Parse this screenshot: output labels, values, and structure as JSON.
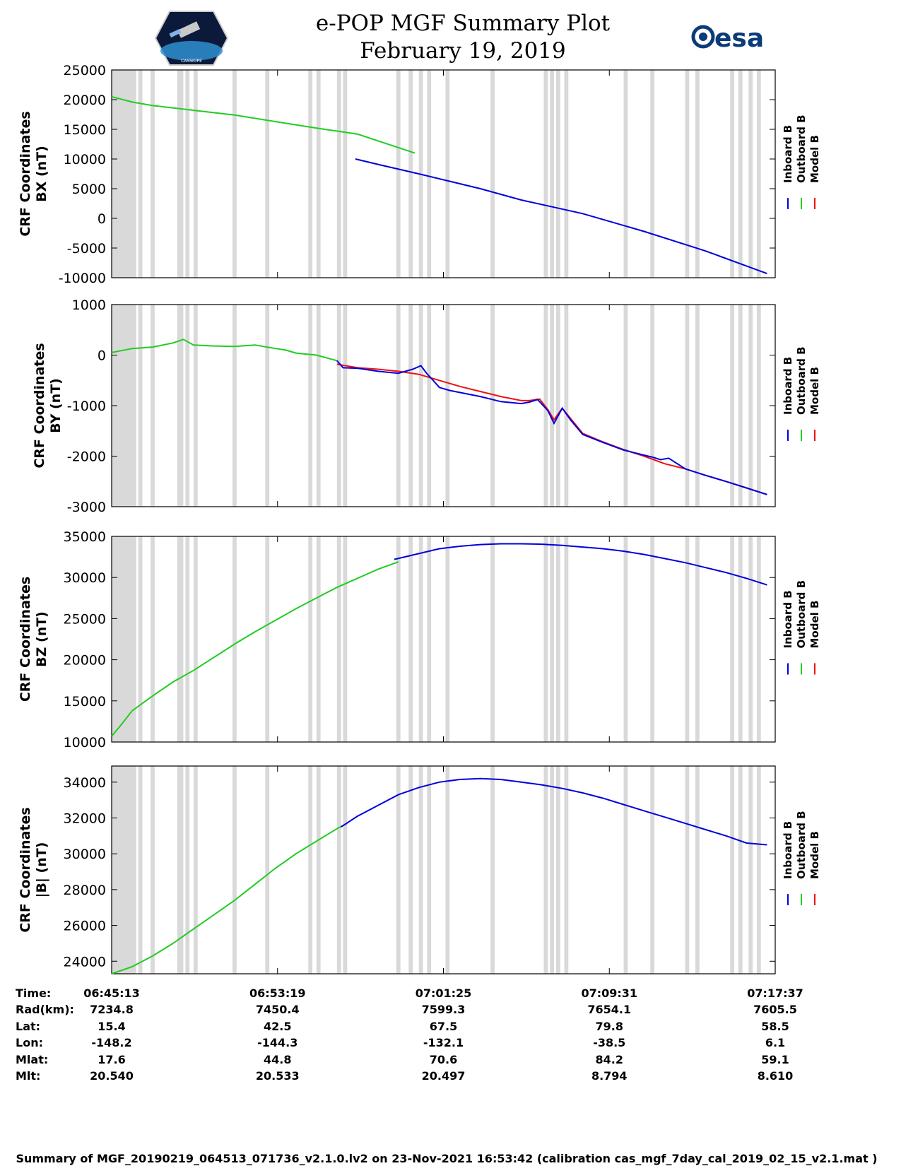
{
  "title": "e-POP MGF Summary Plot",
  "date": "February 19, 2019",
  "logo_left_text": "CASSIOPE",
  "logo_right_text": "esa",
  "colors": {
    "inboard": "#0000dd",
    "outboard": "#22cc22",
    "model": "#ee1111",
    "gap": "#d9d9d9"
  },
  "legend": [
    {
      "label": "Inboard B",
      "color": "#0000dd"
    },
    {
      "label": "Outboard B",
      "color": "#22cc22"
    },
    {
      "label": "Model B",
      "color": "#ee1111"
    }
  ],
  "chart_data": [
    {
      "type": "line",
      "ylabel": [
        "CRF Coordinates",
        "BX (nT)"
      ],
      "ylim": [
        -10000,
        25000
      ],
      "yticks": [
        25000,
        20000,
        15000,
        10000,
        5000,
        0,
        -5000,
        -10000
      ],
      "xlim": [
        0,
        32
      ],
      "series": [
        {
          "name": "Outboard B",
          "color": "#22cc22",
          "x": [
            0,
            1,
            2,
            4,
            6,
            8,
            10,
            12,
            14.8
          ],
          "y": [
            20500,
            19600,
            19000,
            18200,
            17400,
            16300,
            15200,
            14200,
            11000
          ]
        },
        {
          "name": "Inboard B",
          "color": "#0000dd",
          "x": [
            11.9,
            13,
            15,
            18,
            20,
            23,
            26,
            29,
            32
          ],
          "y": [
            10000,
            9100,
            7500,
            5000,
            3100,
            800,
            -2200,
            -5500,
            -9300
          ]
        }
      ]
    },
    {
      "type": "line",
      "ylabel": [
        "CRF Coordinates",
        "BY (nT)"
      ],
      "ylim": [
        -3000,
        1000
      ],
      "yticks": [
        1000,
        0,
        -1000,
        -2000,
        -3000
      ],
      "xlim": [
        0,
        32
      ],
      "series": [
        {
          "name": "Model B",
          "color": "#ee1111",
          "x": [
            11,
            12,
            13,
            14,
            15,
            16,
            17,
            18,
            19,
            20,
            20.4,
            20.9,
            21.3,
            21.6,
            22,
            22.4,
            23,
            24,
            25,
            26,
            27,
            28,
            29,
            30,
            31,
            32
          ],
          "y": [
            -180,
            -250,
            -280,
            -320,
            -380,
            -500,
            -620,
            -720,
            -820,
            -900,
            -900,
            -870,
            -1080,
            -1280,
            -1050,
            -1250,
            -1550,
            -1720,
            -1870,
            -2000,
            -2150,
            -2250,
            -2380,
            -2500,
            -2630,
            -2760
          ]
        },
        {
          "name": "Outboard B",
          "color": "#22cc22",
          "x": [
            0,
            1,
            2,
            3,
            3.5,
            4,
            5,
            6,
            7,
            8,
            8.5,
            9,
            10,
            11
          ],
          "y": [
            50,
            130,
            160,
            240,
            310,
            200,
            180,
            170,
            200,
            130,
            100,
            40,
            0,
            -110
          ]
        },
        {
          "name": "Inboard B",
          "color": "#0000dd",
          "x": [
            11,
            11.3,
            12,
            13,
            14,
            14.7,
            15.1,
            15.4,
            15.7,
            16,
            16.5,
            17,
            18,
            19,
            20,
            20.4,
            20.8,
            21.3,
            21.6,
            22,
            22.4,
            23,
            24,
            25,
            26,
            26.4,
            26.8,
            27.2,
            28,
            29,
            30,
            31,
            32
          ],
          "y": [
            -110,
            -250,
            -260,
            -320,
            -360,
            -280,
            -210,
            -370,
            -500,
            -640,
            -700,
            -740,
            -820,
            -920,
            -960,
            -930,
            -880,
            -1100,
            -1350,
            -1050,
            -1280,
            -1570,
            -1730,
            -1880,
            -1980,
            -2020,
            -2070,
            -2040,
            -2250,
            -2380,
            -2500,
            -2630,
            -2760
          ]
        }
      ]
    },
    {
      "type": "line",
      "ylabel": [
        "CRF Coordinates",
        "BZ (nT)"
      ],
      "ylim": [
        10000,
        35000
      ],
      "yticks": [
        35000,
        30000,
        25000,
        20000,
        15000,
        10000
      ],
      "xlim": [
        0,
        32
      ],
      "series": [
        {
          "name": "Outboard B",
          "color": "#22cc22",
          "x": [
            0,
            0.5,
            1,
            2,
            3,
            4,
            5,
            6,
            7,
            8,
            9,
            10,
            11,
            12,
            13,
            14
          ],
          "y": [
            10700,
            12200,
            13800,
            15600,
            17300,
            18700,
            20300,
            21900,
            23400,
            24800,
            26200,
            27500,
            28800,
            29900,
            31000,
            31900
          ]
        },
        {
          "name": "Inboard B",
          "color": "#0000dd",
          "x": [
            13.8,
            15,
            16,
            17,
            18,
            19,
            20,
            21,
            22,
            23,
            24,
            25,
            26,
            27,
            28,
            29,
            30,
            31,
            32
          ],
          "y": [
            32200,
            32900,
            33500,
            33800,
            34000,
            34100,
            34100,
            34050,
            33900,
            33700,
            33500,
            33200,
            32800,
            32300,
            31800,
            31200,
            30600,
            29900,
            29100
          ]
        }
      ]
    },
    {
      "type": "line",
      "ylabel": [
        "CRF Coordinates",
        "|B| (nT)"
      ],
      "ylim": [
        23300,
        34900
      ],
      "yticks": [
        34000,
        32000,
        30000,
        28000,
        26000,
        24000
      ],
      "xlim": [
        0,
        32
      ],
      "series": [
        {
          "name": "Outboard B",
          "color": "#22cc22",
          "x": [
            0,
            1,
            2,
            3,
            4,
            5,
            6,
            7,
            8,
            9,
            10,
            11,
            11.5
          ],
          "y": [
            23300,
            23700,
            24300,
            25000,
            25800,
            26600,
            27400,
            28300,
            29200,
            30000,
            30700,
            31400,
            31700
          ]
        },
        {
          "name": "Inboard B",
          "color": "#0000dd",
          "x": [
            11.2,
            12,
            13,
            14,
            15,
            16,
            17,
            18,
            19,
            20,
            21,
            22,
            23,
            24,
            25,
            26,
            27,
            28,
            29,
            30,
            31,
            32
          ],
          "y": [
            31500,
            32100,
            32700,
            33300,
            33700,
            34000,
            34150,
            34200,
            34150,
            34000,
            33850,
            33650,
            33400,
            33100,
            32750,
            32400,
            32050,
            31700,
            31350,
            31000,
            30600,
            30500
          ]
        }
      ]
    }
  ],
  "gaps_min": [
    [
      0,
      1.2
    ],
    [
      1.3,
      1.5
    ],
    [
      1.9,
      2.1
    ],
    [
      3.2,
      3.5
    ],
    [
      3.6,
      3.8
    ],
    [
      4.0,
      4.2
    ],
    [
      5.9,
      6.1
    ],
    [
      7.5,
      7.7
    ],
    [
      9.6,
      9.8
    ],
    [
      10.0,
      10.2
    ],
    [
      11.0,
      11.2
    ],
    [
      11.3,
      11.5
    ],
    [
      13.9,
      14.1
    ],
    [
      14.5,
      14.7
    ],
    [
      15.0,
      15.2
    ],
    [
      15.4,
      15.6
    ],
    [
      16.3,
      16.5
    ],
    [
      18.5,
      18.7
    ],
    [
      21.1,
      21.3
    ],
    [
      21.4,
      21.6
    ],
    [
      21.7,
      21.9
    ],
    [
      22.1,
      22.3
    ],
    [
      25.0,
      25.2
    ],
    [
      26.3,
      26.5
    ],
    [
      28.0,
      28.2
    ],
    [
      28.5,
      28.7
    ],
    [
      30.2,
      30.4
    ],
    [
      30.6,
      30.8
    ],
    [
      31.1,
      31.3
    ],
    [
      31.5,
      31.7
    ]
  ],
  "xticks_min": [
    0,
    8.1,
    16.2,
    24.3,
    32.4
  ],
  "ephemeris": {
    "row_labels": [
      "Time:",
      "Rad(km):",
      "Lat:",
      "Lon:",
      "Mlat:",
      "Mlt:"
    ],
    "columns": [
      [
        "06:45:13",
        "7234.8",
        "15.4",
        "-148.2",
        "17.6",
        "20.540"
      ],
      [
        "06:53:19",
        "7450.4",
        "42.5",
        "-144.3",
        "44.8",
        "20.533"
      ],
      [
        "07:01:25",
        "7599.3",
        "67.5",
        "-132.1",
        "70.6",
        "20.497"
      ],
      [
        "07:09:31",
        "7654.1",
        "79.8",
        "-38.5",
        "84.2",
        "8.794"
      ],
      [
        "07:17:37",
        "7605.5",
        "58.5",
        "6.1",
        "59.1",
        "8.610"
      ]
    ]
  },
  "footer": "Summary of MGF_20190219_064513_071736_v2.1.0.lv2 on 23-Nov-2021 16:53:42 (calibration cas_mgf_7day_cal_2019_02_15_v2.1.mat )"
}
